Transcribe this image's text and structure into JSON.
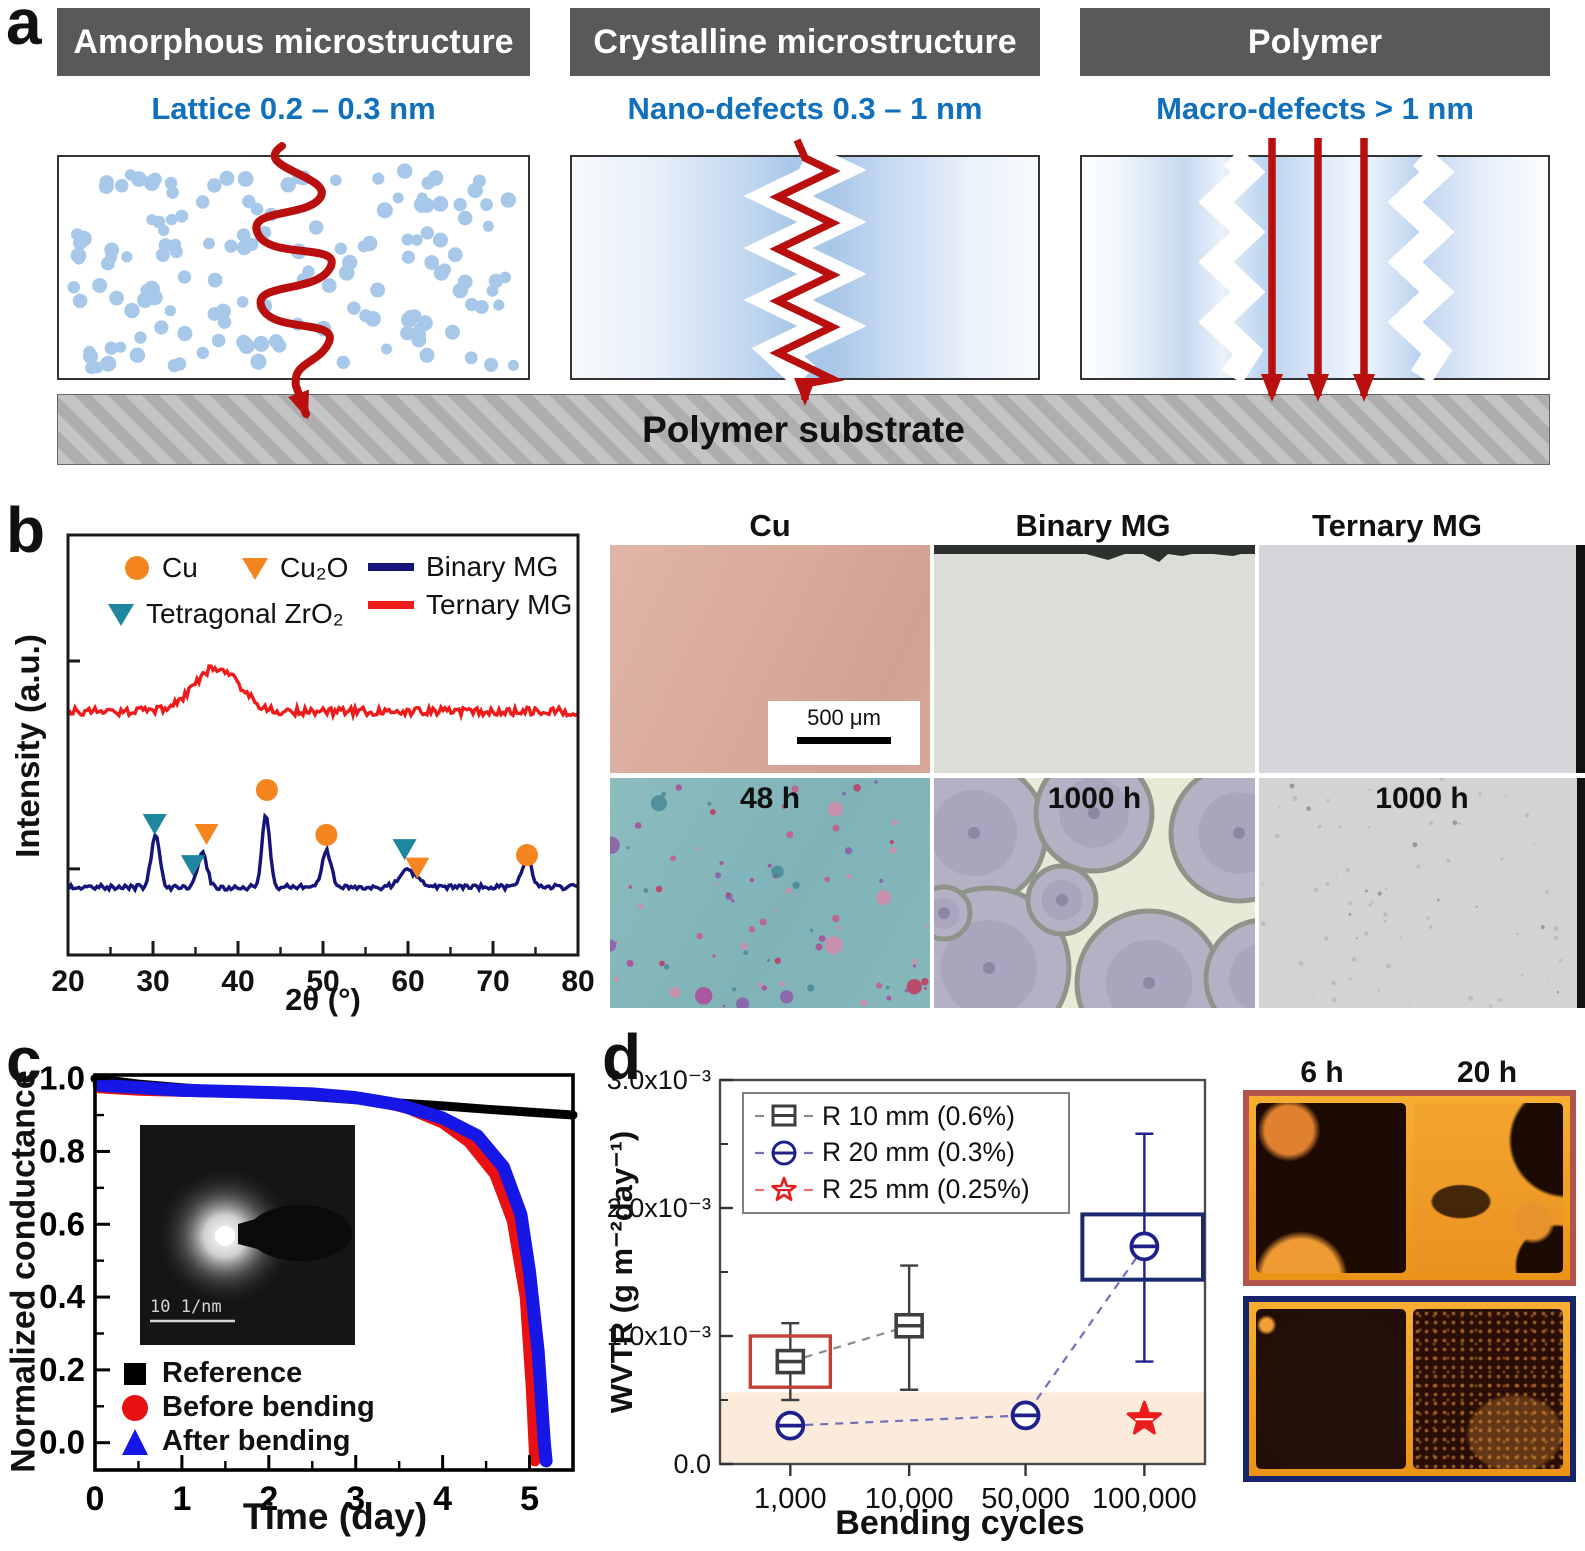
{
  "panel_a": {
    "label": "a",
    "columns": [
      {
        "header": "Amorphous microstructure",
        "caption": "Lattice 0.2 – 0.3 nm"
      },
      {
        "header": "Crystalline microstructure",
        "caption": "Nano-defects 0.3 – 1 nm"
      },
      {
        "header": "Polymer",
        "caption": "Macro-defects > 1 nm"
      }
    ],
    "substrate_label": "Polymer substrate",
    "colors": {
      "header_bg": "#58595b",
      "caption_text": "#1170bb",
      "arrow_red": "#b90f0f",
      "dot_blue": "#a7c8e9"
    }
  },
  "panel_b": {
    "label": "b",
    "micrograph_labels": [
      "Cu",
      "Binary MG",
      "Ternary MG"
    ],
    "scale_bar_label": "500 μm",
    "exposure_labels": [
      "48 h",
      "1000 h",
      "1000 h"
    ]
  },
  "panel_c": {
    "label": "c"
  },
  "panel_d": {
    "label": "d",
    "photo_time_labels": [
      "6 h",
      "20 h"
    ]
  },
  "chart_data": [
    {
      "id": "xrd",
      "type": "line",
      "xlabel": "2θ (°)",
      "ylabel": "Intensity (a.u.)",
      "xlim": [
        20,
        80
      ],
      "xticks": [
        20,
        30,
        40,
        50,
        60,
        70,
        80
      ],
      "legend_markers": [
        {
          "label": "Cu",
          "symbol": "circle",
          "color": "#f5861f"
        },
        {
          "label": "Cu₂O",
          "symbol": "triangle-down",
          "color": "#f5861f"
        },
        {
          "label": "Tetragonal ZrO₂",
          "symbol": "triangle-down",
          "color": "#1f86a0"
        }
      ],
      "legend_lines": [
        {
          "label": "Binary MG",
          "color": "#14147a"
        },
        {
          "label": "Ternary MG",
          "color": "#ef1a1a"
        }
      ],
      "series": [
        {
          "name": "Ternary MG",
          "color": "#ef1a1a",
          "baseline_frac": 0.43,
          "noise_frac": 0.02,
          "peaks": [
            {
              "x": 37.5,
              "h_frac": 0.105,
              "sigma": 2.6
            }
          ]
        },
        {
          "name": "Binary MG",
          "color": "#14147a",
          "baseline_frac": 0.845,
          "noise_frac": 0.013,
          "peaks": [
            {
              "x": 30.3,
              "h_frac": 0.125,
              "sigma": 0.5
            },
            {
              "x": 35.8,
              "h_frac": 0.082,
              "sigma": 0.55
            },
            {
              "x": 43.3,
              "h_frac": 0.175,
              "sigma": 0.45
            },
            {
              "x": 50.4,
              "h_frac": 0.085,
              "sigma": 0.55
            },
            {
              "x": 60.0,
              "h_frac": 0.04,
              "sigma": 1.0
            },
            {
              "x": 74.0,
              "h_frac": 0.062,
              "sigma": 0.6
            }
          ]
        }
      ],
      "peak_markers": [
        {
          "x": 30.2,
          "y_frac": 0.688,
          "symbol": "triangle-down",
          "color": "#1f86a0"
        },
        {
          "x": 34.7,
          "y_frac": 0.786,
          "symbol": "triangle-down",
          "color": "#1f86a0"
        },
        {
          "x": 36.3,
          "y_frac": 0.712,
          "symbol": "triangle-down",
          "color": "#f5861f"
        },
        {
          "x": 43.4,
          "y_frac": 0.607,
          "symbol": "circle",
          "color": "#f5861f"
        },
        {
          "x": 50.4,
          "y_frac": 0.714,
          "symbol": "circle",
          "color": "#f5861f"
        },
        {
          "x": 59.6,
          "y_frac": 0.748,
          "symbol": "triangle-down",
          "color": "#1f86a0"
        },
        {
          "x": 61.1,
          "y_frac": 0.792,
          "symbol": "triangle-down",
          "color": "#f5861f"
        },
        {
          "x": 74.0,
          "y_frac": 0.762,
          "symbol": "circle",
          "color": "#f5861f"
        }
      ]
    },
    {
      "id": "conductance",
      "type": "line",
      "xlabel": "Time (day)",
      "ylabel": "Normalized conductance",
      "xlim": [
        0,
        5.5
      ],
      "ylim": [
        -0.075,
        1.01
      ],
      "xticks": [
        0,
        1,
        2,
        3,
        4,
        5
      ],
      "yticks": [
        0.0,
        0.2,
        0.4,
        0.6,
        0.8,
        1.0
      ],
      "ytick_labels": [
        "0.0",
        "0.2",
        "0.4",
        "0.6",
        "0.8",
        "1.0"
      ],
      "inset_scale_label": "10 1/nm",
      "legend": [
        {
          "label": "Reference",
          "color": "#000000",
          "symbol": "square"
        },
        {
          "label": "Before bending",
          "color": "#e81010",
          "symbol": "circle"
        },
        {
          "label": "After bending",
          "color": "#1616e6",
          "symbol": "triangle-up"
        }
      ],
      "series": [
        {
          "name": "Reference",
          "color": "#000000",
          "width": 9,
          "points": [
            [
              0,
              1.0
            ],
            [
              0.5,
              0.985
            ],
            [
              1,
              0.975
            ],
            [
              1.5,
              0.967
            ],
            [
              2,
              0.959
            ],
            [
              2.5,
              0.951
            ],
            [
              3,
              0.942
            ],
            [
              3.5,
              0.933
            ],
            [
              4,
              0.925
            ],
            [
              4.5,
              0.916
            ],
            [
              5,
              0.908
            ],
            [
              5.5,
              0.9
            ]
          ]
        },
        {
          "name": "Before bending",
          "color": "#e81010",
          "width": 11,
          "points": [
            [
              0.05,
              0.975
            ],
            [
              0.5,
              0.968
            ],
            [
              1,
              0.965
            ],
            [
              1.5,
              0.963
            ],
            [
              2,
              0.961
            ],
            [
              2.5,
              0.958
            ],
            [
              2.8,
              0.953
            ],
            [
              3.2,
              0.942
            ],
            [
              3.6,
              0.918
            ],
            [
              4,
              0.878
            ],
            [
              4.3,
              0.826
            ],
            [
              4.6,
              0.737
            ],
            [
              4.8,
              0.61
            ],
            [
              4.95,
              0.4
            ],
            [
              5.02,
              0.15
            ],
            [
              5.06,
              -0.05
            ]
          ]
        },
        {
          "name": "After bending",
          "color": "#1616e6",
          "width": 13,
          "points": [
            [
              0.05,
              0.982
            ],
            [
              1,
              0.968
            ],
            [
              2,
              0.962
            ],
            [
              2.5,
              0.958
            ],
            [
              3,
              0.948
            ],
            [
              3.5,
              0.928
            ],
            [
              4,
              0.892
            ],
            [
              4.4,
              0.843
            ],
            [
              4.7,
              0.757
            ],
            [
              4.9,
              0.627
            ],
            [
              5.0,
              0.47
            ],
            [
              5.1,
              0.25
            ],
            [
              5.17,
              0.0
            ],
            [
              5.19,
              -0.05
            ]
          ]
        }
      ]
    },
    {
      "id": "wvtr",
      "type": "scatter",
      "xlabel": "Bending cycles",
      "ylabel": "WVTR (g m⁻²day⁻¹)",
      "y_unit": "×10⁻³",
      "categories": [
        "1,000",
        "10,000",
        "50,000",
        "100,000"
      ],
      "cat_fracs": [
        0.145,
        0.39,
        0.63,
        0.875
      ],
      "ylim": [
        0,
        3
      ],
      "yticks": [
        {
          "v": 0,
          "label": "0.0"
        },
        {
          "v": 1,
          "label": "1.0x10⁻³"
        },
        {
          "v": 2,
          "label": "2.0x10⁻³"
        },
        {
          "v": 3,
          "label": "3.0x10⁻³"
        }
      ],
      "shaded_band": {
        "y0": 0,
        "y1": 0.56,
        "color": "#fcebdb"
      },
      "series": [
        {
          "name": "R 10 mm (0.6%)",
          "color": "#3f3f3f",
          "dash_color": "#8a8a8a",
          "marker": "square-hline",
          "points": [
            {
              "cat": 0,
              "y": 0.8,
              "lo": 0.5,
              "hi": 1.1
            },
            {
              "cat": 1,
              "y": 1.08,
              "lo": 0.58,
              "hi": 1.55
            }
          ],
          "highlight_box": {
            "cat": 0,
            "y0": 0.6,
            "y1": 1.0,
            "color": "#c04038",
            "half_w": 40
          }
        },
        {
          "name": "R 20 mm (0.3%)",
          "color": "#20208c",
          "dash_color": "#7070bb",
          "marker": "circle-hline",
          "points": [
            {
              "cat": 0,
              "y": 0.3,
              "lo": 0.23,
              "hi": 0.37
            },
            {
              "cat": 2,
              "y": 0.38,
              "lo": 0.31,
              "hi": 0.45
            },
            {
              "cat": 3,
              "y": 1.7,
              "lo": 0.8,
              "hi": 2.58
            }
          ],
          "highlight_box": {
            "cat": 3,
            "y0": 1.44,
            "y1": 1.95,
            "color": "#1b2a70",
            "half_w": 62
          }
        },
        {
          "name": "R 25 mm (0.25%)",
          "color": "#ea1c1c",
          "dash_color": "#ea7070",
          "marker": "star",
          "points": [
            {
              "cat": 3,
              "y": 0.35
            }
          ]
        }
      ]
    }
  ]
}
